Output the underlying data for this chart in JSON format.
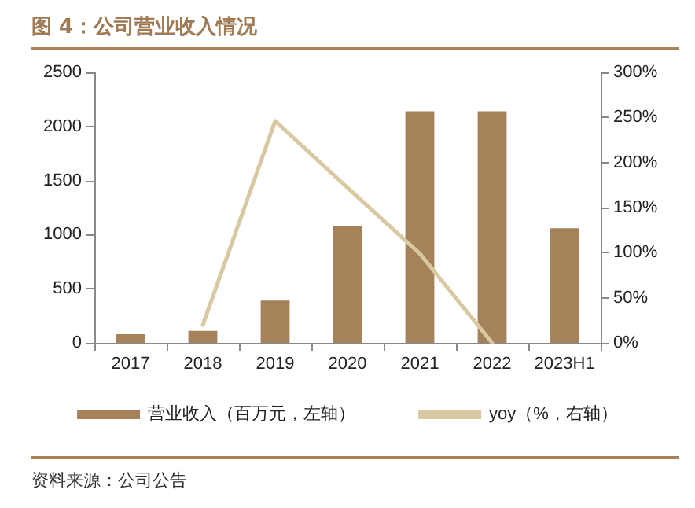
{
  "chart_data": {
    "type": "bar",
    "title": "图 4：公司营业收入情况",
    "categories": [
      "2017",
      "2018",
      "2019",
      "2020",
      "2021",
      "2022",
      "2023H1"
    ],
    "series": [
      {
        "name": "营业收入（百万元，左轴）",
        "color": "#a5825a",
        "values": [
          80,
          110,
          390,
          1080,
          2140,
          2140,
          1060
        ]
      },
      {
        "name": "yoy（%，右轴）",
        "type": "line",
        "axis": "y2",
        "color": "#d8c9a3",
        "values": [
          null,
          20,
          246,
          172,
          99,
          0,
          null
        ]
      }
    ],
    "ylim": [
      0,
      2500
    ],
    "yticks": [
      0,
      500,
      1000,
      1500,
      2000,
      2500
    ],
    "y2lim": [
      0,
      300
    ],
    "y2ticks": [
      {
        "value": 0,
        "label": "0%"
      },
      {
        "value": 50,
        "label": "50%"
      },
      {
        "value": 100,
        "label": "100%"
      },
      {
        "value": 150,
        "label": "150%"
      },
      {
        "value": 200,
        "label": "200%"
      },
      {
        "value": 250,
        "label": "250%"
      },
      {
        "value": 300,
        "label": "300%"
      }
    ],
    "grid": false,
    "legend": "bottom",
    "marker": "none",
    "line_style": "solid",
    "annotations": [
      "资料来源：公司公告"
    ]
  }
}
